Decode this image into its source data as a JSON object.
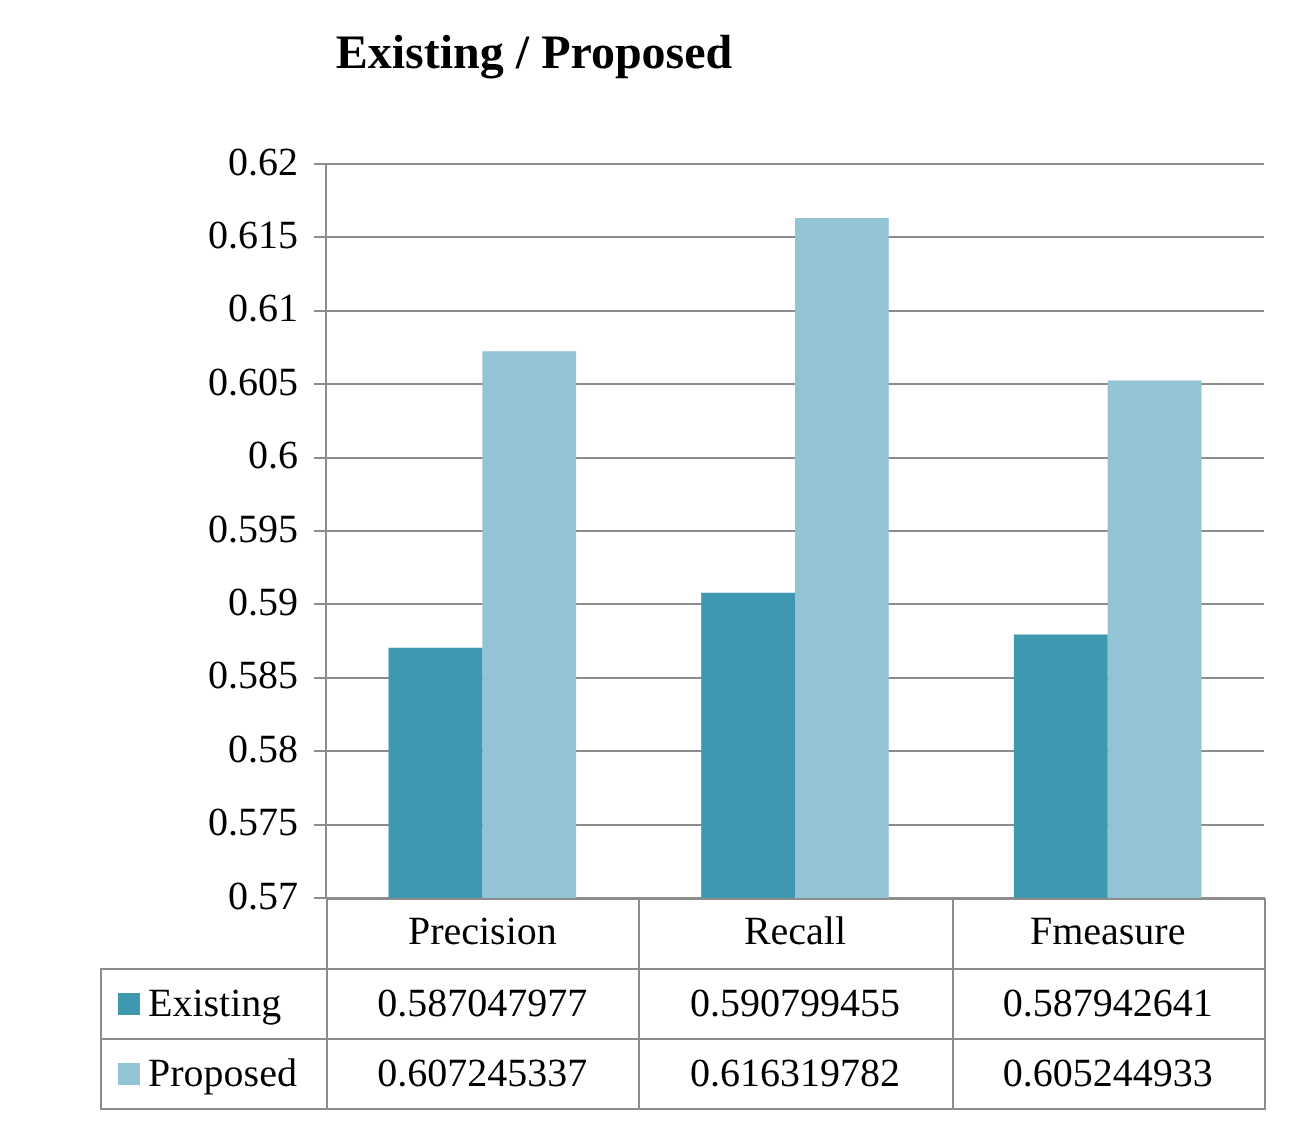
{
  "chart_data": {
    "type": "bar",
    "title": "Existing / Proposed",
    "categories": [
      "Precision",
      "Recall",
      "Fmeasure"
    ],
    "series": [
      {
        "name": "Existing",
        "color": "#4098b0",
        "values": [
          0.587047977,
          0.590799455,
          0.587942641
        ]
      },
      {
        "name": "Proposed",
        "color": "#93c4d6",
        "values": [
          0.607245337,
          0.616319782,
          0.605244933
        ]
      }
    ],
    "ylim": [
      0.57,
      0.62
    ],
    "yticks": [
      0.57,
      0.575,
      0.58,
      0.585,
      0.59,
      0.595,
      0.6,
      0.605,
      0.61,
      0.615,
      0.62
    ],
    "grid": "y",
    "legend": "bottom",
    "data_labels": true
  }
}
